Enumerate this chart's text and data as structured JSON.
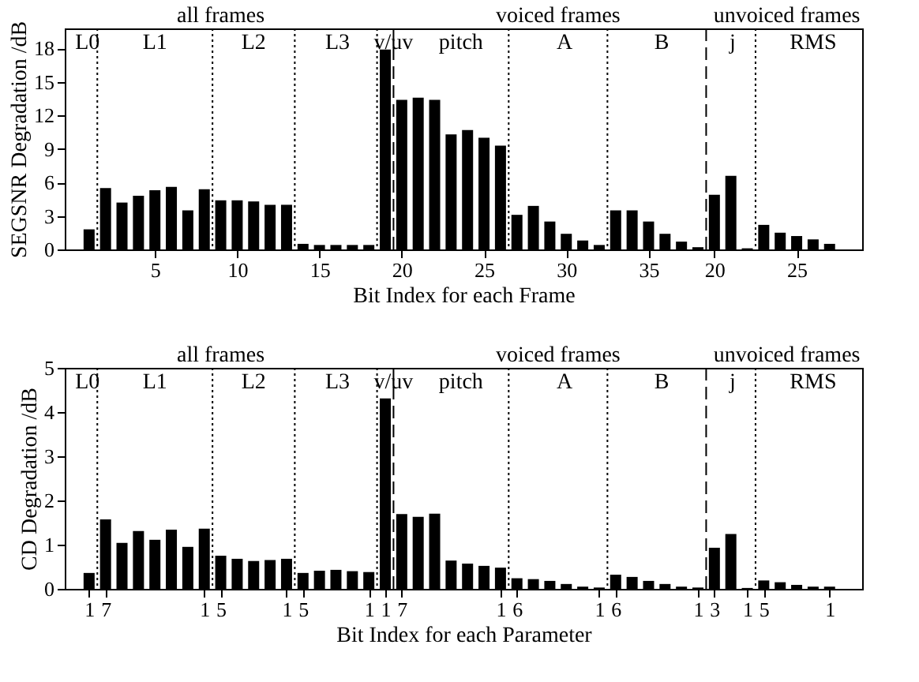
{
  "chart_data": [
    {
      "type": "bar",
      "xlabel": "Bit Index for each Frame",
      "ylabel": "SEGSNR Degradation /dB",
      "categories": [
        null,
        null,
        null,
        null,
        "5",
        null,
        null,
        null,
        null,
        "10",
        null,
        null,
        null,
        null,
        "15",
        null,
        null,
        null,
        null,
        "20",
        null,
        null,
        null,
        null,
        "25",
        null,
        null,
        null,
        null,
        "30",
        null,
        null,
        null,
        null,
        "35",
        null,
        null,
        null,
        "20",
        null,
        null,
        null,
        null,
        "25",
        null,
        null
      ],
      "series": [
        {
          "color": "#000000",
          "values": [
            1.8,
            5.5,
            4.2,
            4.8,
            5.3,
            5.6,
            3.5,
            5.4,
            4.4,
            4.4,
            4.3,
            4.0,
            4.0,
            0.5,
            0.4,
            0.4,
            0.4,
            0.4,
            17.9,
            13.4,
            13.6,
            13.4,
            10.3,
            10.7,
            10.0,
            9.3,
            3.1,
            3.9,
            2.5,
            1.4,
            0.8,
            0.4,
            3.5,
            3.5,
            2.5,
            1.4,
            0.7,
            0.2,
            4.9,
            6.6,
            0.1,
            2.2,
            1.5,
            1.2,
            0.9,
            0.5
          ]
        }
      ],
      "ylim": [
        0,
        19.8
      ],
      "yticks": [
        0,
        3,
        6,
        9,
        12,
        15,
        18
      ],
      "annotations": [
        "all frames",
        "voiced frames",
        "unvoiced frames",
        "L0",
        "L1",
        "L2",
        "L3",
        "v/uv",
        "pitch",
        "A",
        "B",
        "j",
        "RMS"
      ]
    },
    {
      "type": "bar",
      "xlabel": "Bit Index for each Parameter",
      "ylabel": "CD Degradation /dB",
      "categories": [
        "1",
        "7",
        null,
        null,
        null,
        null,
        null,
        "1",
        "5",
        null,
        null,
        null,
        "1",
        "5",
        null,
        null,
        null,
        "1",
        "1",
        "7",
        null,
        null,
        null,
        null,
        null,
        "1",
        "6",
        null,
        null,
        null,
        null,
        "1",
        "6",
        null,
        null,
        null,
        null,
        "1",
        "3",
        null,
        "1",
        "5",
        null,
        null,
        null,
        "1"
      ],
      "series": [
        {
          "color": "#000000",
          "values": [
            0.36,
            1.57,
            1.04,
            1.31,
            1.11,
            1.34,
            0.95,
            1.36,
            0.75,
            0.68,
            0.63,
            0.65,
            0.68,
            0.36,
            0.41,
            0.43,
            0.4,
            0.38,
            4.31,
            1.69,
            1.63,
            1.7,
            0.64,
            0.57,
            0.52,
            0.48,
            0.24,
            0.22,
            0.18,
            0.11,
            0.05,
            0.03,
            0.32,
            0.27,
            0.18,
            0.11,
            0.05,
            0.03,
            0.93,
            1.24,
            0.02,
            0.19,
            0.15,
            0.09,
            0.05,
            0.05
          ]
        }
      ],
      "ylim": [
        0,
        5
      ],
      "yticks": [
        0,
        1,
        2,
        3,
        4,
        5
      ],
      "annotations": [
        "all frames",
        "voiced frames",
        "unvoiced frames",
        "L0",
        "L1",
        "L2",
        "L3",
        "v/uv",
        "pitch",
        "A",
        "B",
        "j",
        "RMS"
      ]
    }
  ]
}
